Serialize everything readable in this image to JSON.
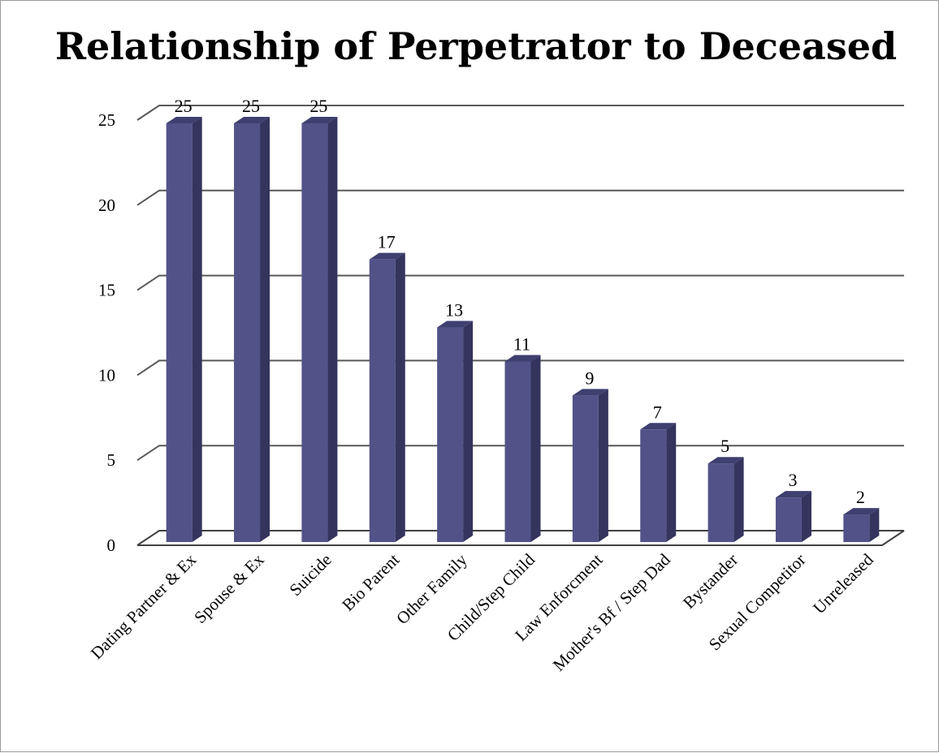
{
  "chart_data": {
    "type": "bar",
    "title": "Relationship of Perpetrator to Deceased",
    "categories": [
      "Dating Partner & Ex",
      "Spouse & Ex",
      "Suicide",
      "Bio Parent",
      "Other Family",
      "Child/Step Child",
      "Law Enforcment",
      "Mother's Bf / Step Dad",
      "Bystander",
      "Sexual Competitor",
      "Unreleased"
    ],
    "values": [
      25,
      25,
      25,
      17,
      13,
      11,
      9,
      7,
      5,
      3,
      2
    ],
    "data_labels": [
      "25",
      "25",
      "25",
      "17",
      "13",
      "11",
      "9",
      "7",
      "5",
      "3",
      "2"
    ],
    "ylim": [
      0,
      25
    ],
    "yticks": [
      "0",
      "5",
      "10",
      "15",
      "20",
      "25"
    ],
    "grid": true,
    "legend": "none",
    "style": "3d-column",
    "colors": {
      "bar_front": "#525289",
      "bar_side": "#34345e",
      "bar_top": "#3f3f70"
    }
  }
}
